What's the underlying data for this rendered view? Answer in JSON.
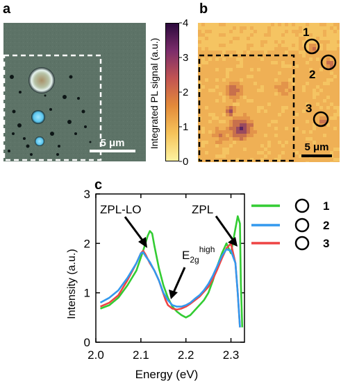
{
  "panels": {
    "a": {
      "letter": "a",
      "scalebar_label": "5 μm"
    },
    "b": {
      "letter": "b",
      "scalebar_label": "5 μm",
      "markers": [
        "1",
        "2",
        "3"
      ],
      "colorbar": {
        "label": "Integrated PL signal (a.u.)",
        "ticks": [
          "0",
          "1",
          "2",
          "3",
          "4"
        ],
        "min": 0,
        "max": 4,
        "colors": [
          "#fdf2a0",
          "#f6c35a",
          "#e38a3a",
          "#c25452",
          "#7c2d6b",
          "#2c0a3d"
        ]
      }
    },
    "c": {
      "letter": "c"
    }
  },
  "chart_data": {
    "type": "line",
    "xlabel": "Energy (eV)",
    "ylabel": "Intensity (a.u.)",
    "xlim": [
      2.0,
      2.33
    ],
    "ylim": [
      0,
      3
    ],
    "xticks": [
      "2.0",
      "2.1",
      "2.2",
      "2.3"
    ],
    "yticks": [
      "0",
      "1",
      "2",
      "3"
    ],
    "annotations": [
      {
        "text": "ZPL-LO",
        "x": 2.115,
        "y": 1.9
      },
      {
        "text": "E",
        "sub": "2g",
        "sup": "high",
        "x": 2.165,
        "y": 0.85
      },
      {
        "text": "ZPL",
        "x": 2.322,
        "y": 1.85
      }
    ],
    "legend_position": "right",
    "series": [
      {
        "name": "1",
        "color": "#33cc33",
        "x": [
          2.01,
          2.03,
          2.05,
          2.07,
          2.09,
          2.105,
          2.115,
          2.12,
          2.125,
          2.13,
          2.14,
          2.15,
          2.16,
          2.17,
          2.18,
          2.19,
          2.2,
          2.21,
          2.22,
          2.23,
          2.24,
          2.25,
          2.26,
          2.27,
          2.28,
          2.29,
          2.3,
          2.31,
          2.315,
          2.32,
          2.322,
          2.325
        ],
        "y": [
          0.68,
          0.75,
          0.9,
          1.15,
          1.45,
          1.85,
          2.15,
          2.25,
          2.2,
          1.95,
          1.5,
          1.15,
          0.9,
          0.72,
          0.62,
          0.55,
          0.5,
          0.55,
          0.65,
          0.75,
          0.85,
          1.0,
          1.25,
          1.55,
          1.8,
          2.0,
          1.8,
          2.3,
          2.55,
          2.4,
          1.2,
          0.3
        ]
      },
      {
        "name": "2",
        "color": "#3399ee",
        "x": [
          2.01,
          2.03,
          2.05,
          2.07,
          2.09,
          2.1,
          2.105,
          2.11,
          2.12,
          2.13,
          2.14,
          2.15,
          2.16,
          2.17,
          2.18,
          2.19,
          2.2,
          2.21,
          2.22,
          2.23,
          2.24,
          2.25,
          2.26,
          2.27,
          2.28,
          2.29,
          2.3,
          2.31,
          2.315,
          2.32
        ],
        "y": [
          0.8,
          0.9,
          1.05,
          1.3,
          1.6,
          1.8,
          1.82,
          1.75,
          1.62,
          1.45,
          1.25,
          1.0,
          0.85,
          0.75,
          0.72,
          0.72,
          0.75,
          0.8,
          0.88,
          0.95,
          1.05,
          1.18,
          1.35,
          1.55,
          1.75,
          1.88,
          1.85,
          1.6,
          1.0,
          0.3
        ]
      },
      {
        "name": "3",
        "color": "#ee4444",
        "x": [
          2.01,
          2.03,
          2.05,
          2.07,
          2.09,
          2.1,
          2.105,
          2.11,
          2.12,
          2.13,
          2.14,
          2.15,
          2.155,
          2.16,
          2.17,
          2.18,
          2.19,
          2.2,
          2.21,
          2.22,
          2.23,
          2.24,
          2.25,
          2.26,
          2.27,
          2.28,
          2.29,
          2.3,
          2.31,
          2.315,
          2.32
        ],
        "y": [
          0.72,
          0.8,
          0.95,
          1.25,
          1.6,
          1.8,
          1.85,
          1.78,
          1.6,
          1.45,
          1.25,
          0.98,
          0.85,
          0.75,
          0.68,
          0.66,
          0.68,
          0.72,
          0.78,
          0.85,
          0.92,
          1.02,
          1.12,
          1.28,
          1.48,
          1.7,
          1.9,
          2.0,
          1.6,
          1.0,
          0.3
        ]
      }
    ]
  }
}
